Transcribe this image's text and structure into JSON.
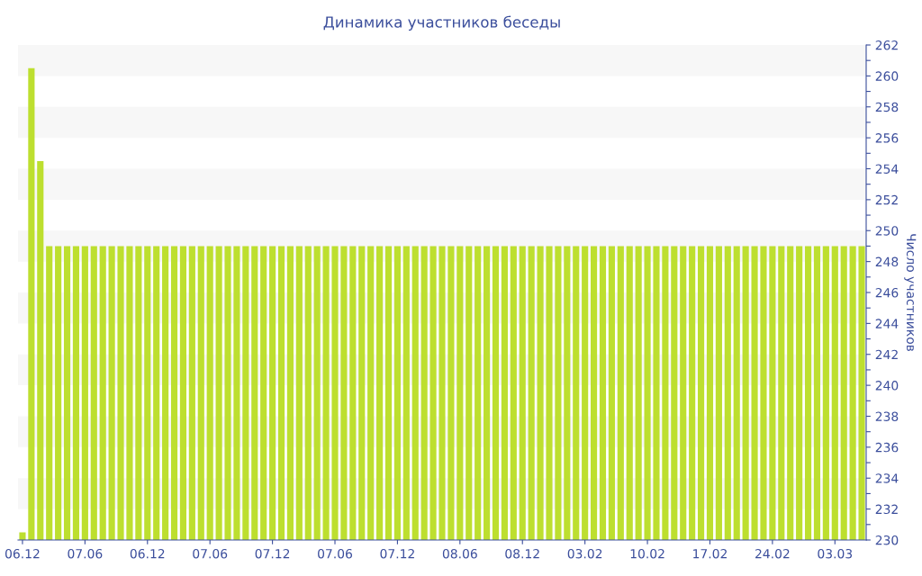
{
  "chart_data": {
    "type": "bar",
    "title": "Динамика участников беседы",
    "ylabel": "Число участников",
    "categories": [
      "06.12",
      null,
      null,
      null,
      null,
      null,
      null,
      "07.06",
      null,
      null,
      null,
      null,
      null,
      null,
      "06.12",
      null,
      null,
      null,
      null,
      null,
      null,
      "07.06",
      null,
      null,
      null,
      null,
      null,
      null,
      "07.12",
      null,
      null,
      null,
      null,
      null,
      null,
      "07.06",
      null,
      null,
      null,
      null,
      null,
      null,
      "07.12",
      null,
      null,
      null,
      null,
      null,
      null,
      "08.06",
      null,
      null,
      null,
      null,
      null,
      null,
      "08.12",
      null,
      null,
      null,
      null,
      null,
      null,
      "03.02",
      null,
      null,
      null,
      null,
      null,
      null,
      "10.02",
      null,
      null,
      null,
      null,
      null,
      null,
      "17.02",
      null,
      null,
      null,
      null,
      null,
      null,
      "24.02",
      null,
      null,
      null,
      null,
      null,
      null,
      "03.03",
      null,
      null,
      null
    ],
    "values": [
      230.5,
      260.5,
      254.5,
      249,
      249,
      249,
      249,
      249,
      249,
      249,
      249,
      249,
      249,
      249,
      249,
      249,
      249,
      249,
      249,
      249,
      249,
      249,
      249,
      249,
      249,
      249,
      249,
      249,
      249,
      249,
      249,
      249,
      249,
      249,
      249,
      249,
      249,
      249,
      249,
      249,
      249,
      249,
      249,
      249,
      249,
      249,
      249,
      249,
      249,
      249,
      249,
      249,
      249,
      249,
      249,
      249,
      249,
      249,
      249,
      249,
      249,
      249,
      249,
      249,
      249,
      249,
      249,
      249,
      249,
      249,
      249,
      249,
      249,
      249,
      249,
      249,
      249,
      249,
      249,
      249,
      249,
      249,
      249,
      249,
      249,
      249,
      249,
      249,
      249,
      249,
      249,
      249,
      249,
      249,
      249
    ],
    "color": "#bddf2f",
    "ylim": [
      230,
      262
    ],
    "yticks": [
      230,
      {
        "value": 231,
        "label": null
      },
      232,
      {
        "value": 233,
        "label": null
      },
      234,
      {
        "value": 235,
        "label": null
      },
      236,
      {
        "value": 237,
        "label": null
      },
      238,
      {
        "value": 239,
        "label": null
      },
      240,
      {
        "value": 241,
        "label": null
      },
      242,
      {
        "value": 243,
        "label": null
      },
      244,
      {
        "value": 245,
        "label": null
      },
      246,
      {
        "value": 247,
        "label": null
      },
      248,
      {
        "value": 249,
        "label": null
      },
      250,
      {
        "value": 251,
        "label": null
      },
      252,
      {
        "value": 253,
        "label": null
      },
      254,
      {
        "value": 255,
        "label": null
      },
      256,
      {
        "value": 257,
        "label": null
      },
      258,
      {
        "value": 259,
        "label": null
      },
      260,
      {
        "value": 261,
        "label": null
      },
      262
    ],
    "bands": [
      {
        "axis": "y",
        "from": 232,
        "to": 234,
        "color": "#f7f7f7"
      },
      {
        "axis": "y",
        "from": 236,
        "to": 238,
        "color": "#f7f7f7"
      },
      {
        "axis": "y",
        "from": 240,
        "to": 242,
        "color": "#f7f7f7"
      },
      {
        "axis": "y",
        "from": 244,
        "to": 246,
        "color": "#f7f7f7"
      },
      {
        "axis": "y",
        "from": 248,
        "to": 250,
        "color": "#f7f7f7"
      },
      {
        "axis": "y",
        "from": 252,
        "to": 254,
        "color": "#f7f7f7"
      },
      {
        "axis": "y",
        "from": 256,
        "to": 258,
        "color": "#f7f7f7"
      },
      {
        "axis": "y",
        "from": 260,
        "to": 262,
        "color": "#f7f7f7"
      }
    ],
    "legend": false
  }
}
